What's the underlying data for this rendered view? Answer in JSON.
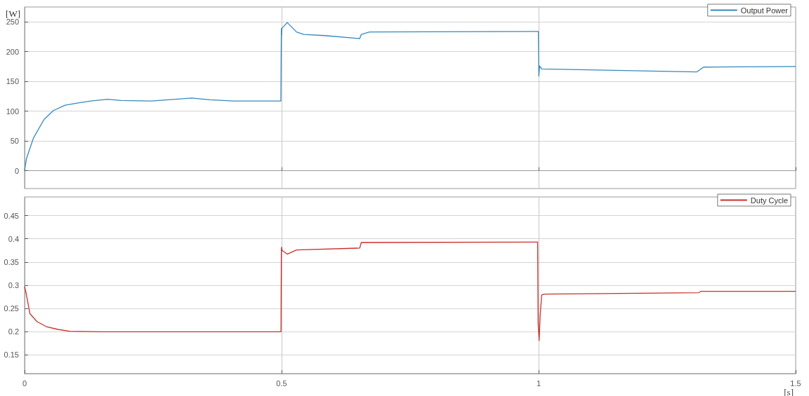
{
  "chart_data": [
    {
      "type": "line",
      "ylabel": "[W]",
      "xlim": [
        0,
        1.5
      ],
      "ylim": [
        -30,
        275
      ],
      "xticks": [
        0,
        0.5,
        1,
        1.5
      ],
      "yticks": [
        0,
        50,
        100,
        150,
        200,
        250
      ],
      "tick_labels": "y",
      "grid": true,
      "legend": "top right",
      "marker": "none",
      "series": [
        {
          "name": "Output Power",
          "color": "#3589bb",
          "x": [
            0,
            0.0036,
            0.0173,
            0.0378,
            0.056,
            0.0787,
            0.106,
            0.129,
            0.161,
            0.188,
            0.247,
            0.325,
            0.361,
            0.406,
            0.4985,
            0.4995,
            0.5,
            0.5005,
            0.511,
            0.529,
            0.543,
            0.584,
            0.652,
            0.655,
            0.671,
            0.998,
            0.9995,
            1.0004,
            1.002,
            1.006,
            1.3077,
            1.321,
            1.5
          ],
          "values": [
            0,
            20,
            55,
            86,
            101,
            110,
            114,
            117,
            120,
            118,
            117,
            122,
            119,
            117,
            117,
            239,
            228,
            239,
            249,
            233,
            229,
            227,
            222,
            229,
            233,
            234,
            234,
            159,
            176,
            171,
            166,
            174,
            175
          ]
        }
      ]
    },
    {
      "type": "line",
      "xlabel": "[s]",
      "xlim": [
        0,
        1.5
      ],
      "ylim": [
        0.11,
        0.49
      ],
      "xticks": [
        0,
        0.5,
        1,
        1.5
      ],
      "yticks": [
        0.15,
        0.2,
        0.25,
        0.3,
        0.35,
        0.4,
        0.45
      ],
      "grid": true,
      "legend": "top right",
      "marker": "none",
      "series": [
        {
          "name": "Duty Cycle",
          "color": "#c9302c",
          "x": [
            0,
            0.003,
            0.0104,
            0.024,
            0.0423,
            0.065,
            0.0878,
            0.15,
            0.4988,
            0.4995,
            0.5,
            0.501,
            0.511,
            0.529,
            0.652,
            0.655,
            0.998,
            0.999,
            1.001,
            1.003,
            1.006,
            1.011,
            1.312,
            1.315,
            1.5
          ],
          "values": [
            0.297,
            0.283,
            0.239,
            0.222,
            0.211,
            0.205,
            0.201,
            0.2,
            0.2,
            0.375,
            0.382,
            0.375,
            0.367,
            0.376,
            0.38,
            0.392,
            0.393,
            0.22,
            0.181,
            0.236,
            0.279,
            0.281,
            0.284,
            0.287,
            0.287
          ]
        }
      ]
    }
  ]
}
